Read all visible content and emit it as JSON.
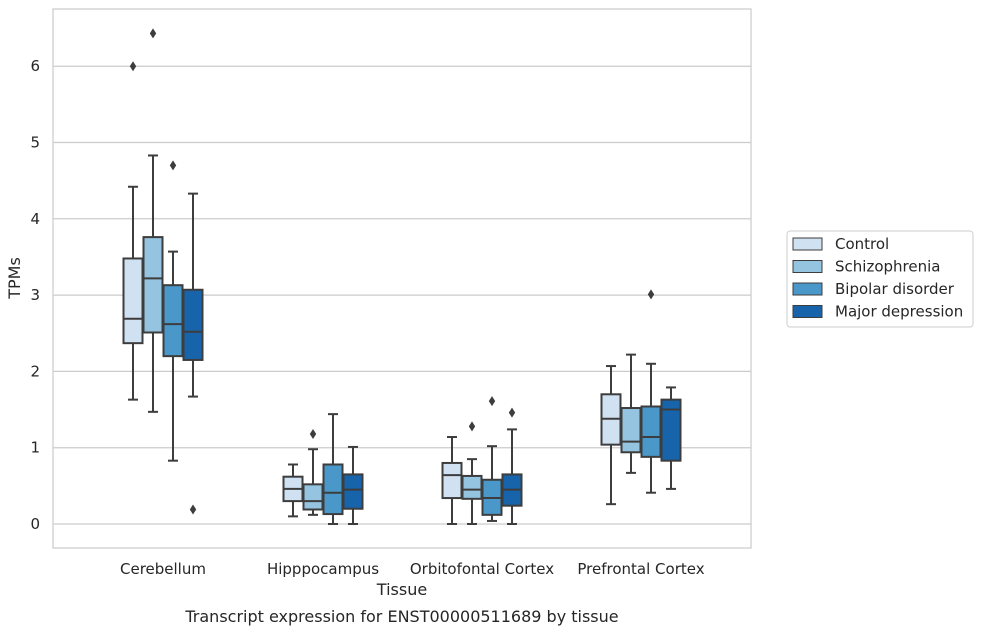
{
  "chart_data": {
    "type": "box",
    "title": "Transcript expression for ENST00000511689 by tissue",
    "xlabel": "Tissue",
    "ylabel": "TPMs",
    "ylim": [
      -0.3,
      6.75
    ],
    "yticks": [
      0,
      1,
      2,
      3,
      4,
      5,
      6
    ],
    "grid": true,
    "legend_position": "right",
    "categories": [
      "Cerebellum",
      "Hipppocampus",
      "Orbitofontal Cortex",
      "Prefrontal Cortex"
    ],
    "series": [
      {
        "name": "Control",
        "color": "#d0e1f2",
        "boxes": [
          {
            "whislo": 1.63,
            "q1": 2.37,
            "med": 2.69,
            "q3": 3.48,
            "whishi": 4.42,
            "fliers": [
              6.0
            ]
          },
          {
            "whislo": 0.1,
            "q1": 0.3,
            "med": 0.46,
            "q3": 0.62,
            "whishi": 0.78,
            "fliers": []
          },
          {
            "whislo": 0.0,
            "q1": 0.34,
            "med": 0.64,
            "q3": 0.8,
            "whishi": 1.14,
            "fliers": []
          },
          {
            "whislo": 0.26,
            "q1": 1.04,
            "med": 1.38,
            "q3": 1.7,
            "whishi": 2.07,
            "fliers": []
          }
        ]
      },
      {
        "name": "Schizophrenia",
        "color": "#94c4df",
        "boxes": [
          {
            "whislo": 1.47,
            "q1": 2.51,
            "med": 3.22,
            "q3": 3.76,
            "whishi": 4.83,
            "fliers": [
              6.43
            ]
          },
          {
            "whislo": 0.12,
            "q1": 0.19,
            "med": 0.3,
            "q3": 0.52,
            "whishi": 0.98,
            "fliers": [
              1.18
            ]
          },
          {
            "whislo": 0.0,
            "q1": 0.33,
            "med": 0.45,
            "q3": 0.63,
            "whishi": 0.85,
            "fliers": [
              1.28
            ]
          },
          {
            "whislo": 0.67,
            "q1": 0.94,
            "med": 1.08,
            "q3": 1.52,
            "whishi": 2.22,
            "fliers": []
          }
        ]
      },
      {
        "name": "Bipolar disorder",
        "color": "#4a98c9",
        "boxes": [
          {
            "whislo": 0.83,
            "q1": 2.2,
            "med": 2.62,
            "q3": 3.13,
            "whishi": 3.57,
            "fliers": [
              4.7
            ]
          },
          {
            "whislo": 0.0,
            "q1": 0.13,
            "med": 0.41,
            "q3": 0.78,
            "whishi": 1.44,
            "fliers": []
          },
          {
            "whislo": 0.04,
            "q1": 0.12,
            "med": 0.34,
            "q3": 0.58,
            "whishi": 1.02,
            "fliers": [
              1.61
            ]
          },
          {
            "whislo": 0.41,
            "q1": 0.88,
            "med": 1.14,
            "q3": 1.54,
            "whishi": 2.1,
            "fliers": [
              3.01
            ]
          }
        ]
      },
      {
        "name": "Major depression",
        "color": "#1764ab",
        "boxes": [
          {
            "whislo": 1.67,
            "q1": 2.15,
            "med": 2.52,
            "q3": 3.07,
            "whishi": 4.33,
            "fliers": [
              0.19
            ]
          },
          {
            "whislo": 0.0,
            "q1": 0.2,
            "med": 0.45,
            "q3": 0.65,
            "whishi": 1.01,
            "fliers": []
          },
          {
            "whislo": 0.0,
            "q1": 0.24,
            "med": 0.45,
            "q3": 0.65,
            "whishi": 1.24,
            "fliers": [
              1.46
            ]
          },
          {
            "whislo": 0.46,
            "q1": 0.83,
            "med": 1.5,
            "q3": 1.63,
            "whishi": 1.79,
            "fliers": []
          }
        ]
      }
    ]
  }
}
